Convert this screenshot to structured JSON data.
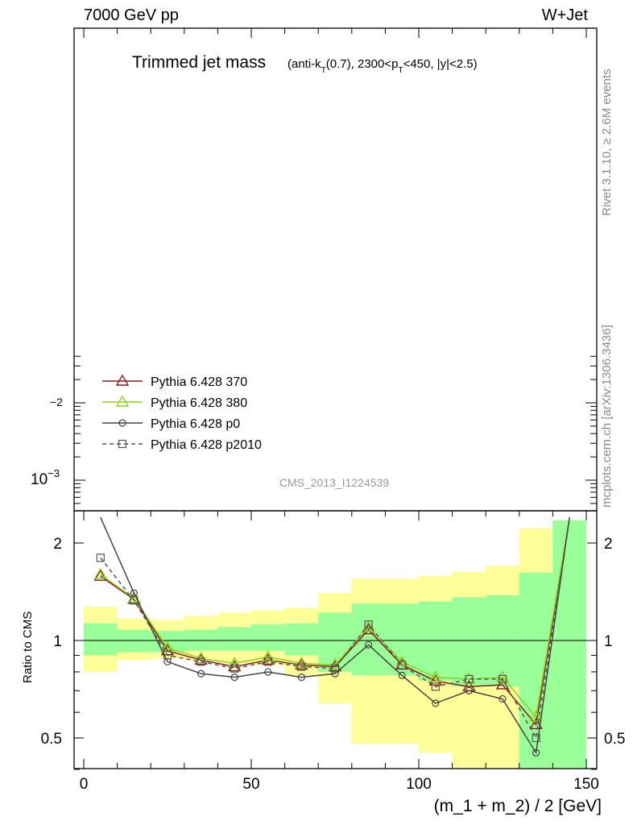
{
  "header": {
    "left": "7000 GeV pp",
    "right": "W+Jet"
  },
  "side_texts": {
    "rivet": "Rivet 3.1.10, ≥ 2.6M events",
    "mcplots": "mcplots.cern.ch [arXiv:1306.3436]"
  },
  "analysis_id": "CMS_2013_I1224539",
  "chart_data": {
    "type": "line",
    "title": "Trimmed jet mass",
    "title_detail": {
      "p1": "(anti-k",
      "sub1": "T",
      "p2": "(0.7), 2300<p",
      "sub2": "T",
      "p3": "<450, |y|<2.5)"
    },
    "xlabel": "(m_1 + m_2) / 2 [GeV]",
    "ylabel_ratio": "Ratio to CMS",
    "xlim": [
      0,
      150
    ],
    "x_ticks": [
      "0",
      "50",
      "100",
      "150"
    ],
    "upper_y_ticks": {
      "minus2_label": "−2",
      "minus3_label": "10⁻³",
      "minus3_base": "10",
      "minus3_exp": "−3"
    },
    "ratio_ylim": [
      0.38,
      2.35
    ],
    "ratio_y_ticks": [
      "0.5",
      "1",
      "2"
    ],
    "bands": {
      "bins": [
        [
          0,
          10
        ],
        [
          10,
          20
        ],
        [
          20,
          30
        ],
        [
          30,
          40
        ],
        [
          40,
          50
        ],
        [
          50,
          60
        ],
        [
          60,
          70
        ],
        [
          70,
          80
        ],
        [
          80,
          90
        ],
        [
          90,
          100
        ],
        [
          100,
          110
        ],
        [
          110,
          120
        ],
        [
          120,
          130
        ],
        [
          130,
          140
        ],
        [
          140,
          150
        ]
      ],
      "green": [
        [
          0.9,
          1.13
        ],
        [
          0.92,
          1.08
        ],
        [
          0.92,
          1.07
        ],
        [
          0.93,
          1.08
        ],
        [
          0.93,
          1.1
        ],
        [
          0.93,
          1.12
        ],
        [
          0.9,
          1.13
        ],
        [
          0.8,
          1.22
        ],
        [
          0.78,
          1.3
        ],
        [
          0.78,
          1.3
        ],
        [
          0.75,
          1.32
        ],
        [
          0.72,
          1.36
        ],
        [
          0.72,
          1.38
        ],
        [
          0.38,
          1.62
        ],
        [
          0.38,
          2.35
        ]
      ],
      "yellow": [
        [
          0.8,
          1.27
        ],
        [
          0.87,
          1.17
        ],
        [
          0.88,
          1.16
        ],
        [
          0.87,
          1.19
        ],
        [
          0.85,
          1.22
        ],
        [
          0.84,
          1.24
        ],
        [
          0.78,
          1.26
        ],
        [
          0.64,
          1.4
        ],
        [
          0.48,
          1.55
        ],
        [
          0.48,
          1.55
        ],
        [
          0.45,
          1.58
        ],
        [
          0.38,
          1.63
        ],
        [
          0.38,
          1.7
        ],
        [
          0.38,
          2.22
        ],
        [
          0.38,
          2.35
        ]
      ]
    },
    "series": [
      {
        "name": "Pythia 6.428 370",
        "color": "#8b1a1a",
        "marker": "triangle",
        "dash": false,
        "x": [
          5,
          15,
          25,
          35,
          45,
          55,
          65,
          75,
          85,
          95,
          105,
          115,
          125,
          135,
          145
        ],
        "y": [
          1.58,
          1.34,
          0.93,
          0.87,
          0.83,
          0.87,
          0.84,
          0.83,
          1.08,
          0.84,
          0.75,
          0.72,
          0.73,
          0.55,
          2.4
        ]
      },
      {
        "name": "Pythia 6.428 380",
        "color": "#8bd21b",
        "marker": "triangle",
        "dash": false,
        "x": [
          5,
          15,
          25,
          35,
          45,
          55,
          65,
          75,
          85,
          95,
          105,
          115,
          125,
          135,
          145
        ],
        "y": [
          1.6,
          1.35,
          0.95,
          0.88,
          0.85,
          0.89,
          0.85,
          0.84,
          1.1,
          0.86,
          0.77,
          0.76,
          0.77,
          0.58,
          2.4
        ]
      },
      {
        "name": "Pythia 6.428 p0",
        "color": "#444444",
        "marker": "circle",
        "dash": false,
        "x": [
          5,
          15,
          25,
          35,
          45,
          55,
          65,
          75,
          85,
          95,
          105,
          115,
          125,
          135,
          145
        ],
        "y": [
          2.4,
          1.4,
          0.86,
          0.79,
          0.77,
          0.8,
          0.77,
          0.79,
          0.97,
          0.78,
          0.64,
          0.7,
          0.66,
          0.45,
          2.4
        ]
      },
      {
        "name": "Pythia 6.428 p2010",
        "color": "#555555",
        "marker": "square",
        "dash": true,
        "x": [
          5,
          15,
          25,
          35,
          45,
          55,
          65,
          75,
          85,
          95,
          105,
          115,
          125,
          135,
          145
        ],
        "y": [
          1.8,
          1.33,
          0.9,
          0.86,
          0.82,
          0.86,
          0.83,
          0.82,
          1.12,
          0.84,
          0.72,
          0.76,
          0.76,
          0.5,
          2.4
        ]
      }
    ]
  }
}
